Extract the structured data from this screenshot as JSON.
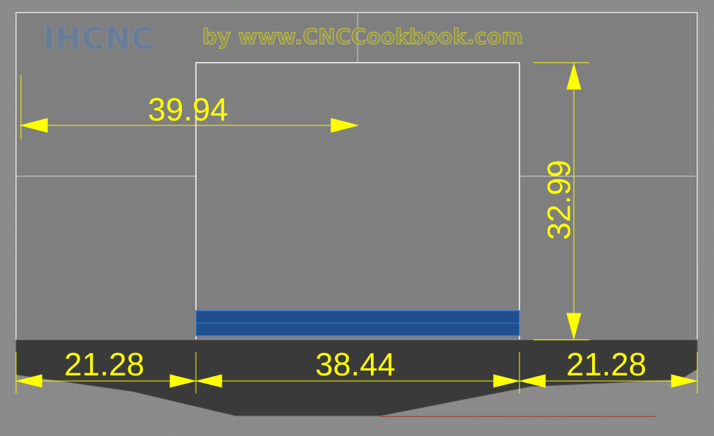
{
  "watermark": {
    "logo": "IHCNC",
    "byline": "by www.CNCCookbook.com"
  },
  "dimensions": {
    "top_width": "39.94",
    "height": "32.99",
    "left_segment": "21.28",
    "middle_segment": "38.44",
    "right_segment": "21.28"
  },
  "colors": {
    "background": "#8a8a8a",
    "panel": "#7f7f7f",
    "base": "#3a3a3a",
    "dimension": "#ffff00",
    "highlight": "#1f4f8f",
    "outline": "#ffffff"
  }
}
